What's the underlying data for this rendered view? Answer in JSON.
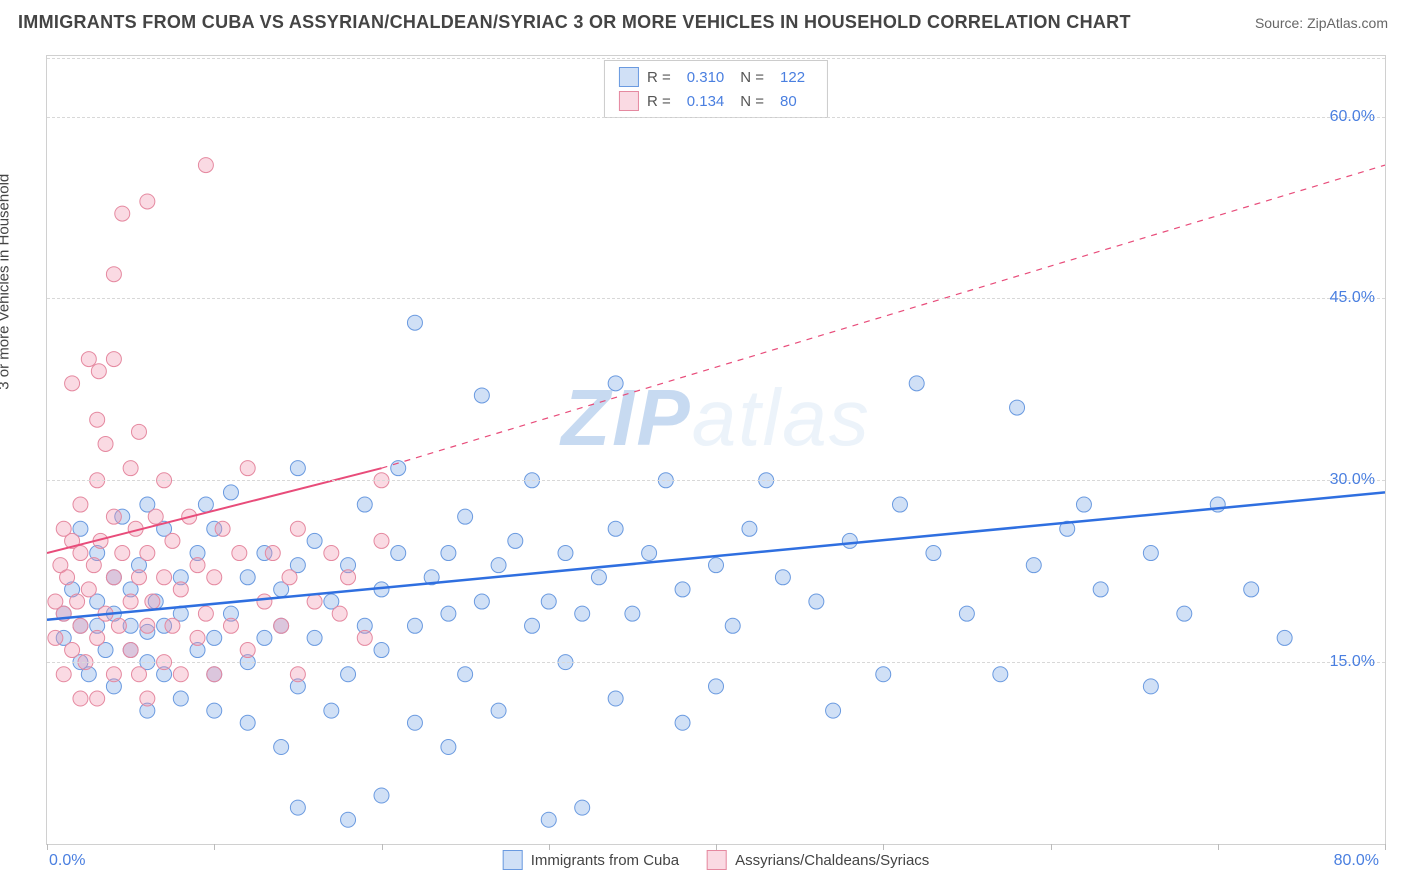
{
  "title": "IMMIGRANTS FROM CUBA VS ASSYRIAN/CHALDEAN/SYRIAC 3 OR MORE VEHICLES IN HOUSEHOLD CORRELATION CHART",
  "source": "Source: ZipAtlas.com",
  "y_axis_label": "3 or more Vehicles in Household",
  "watermark_zip": "ZIP",
  "watermark_atlas": "atlas",
  "chart": {
    "type": "scatter",
    "xlim": [
      0,
      80
    ],
    "ylim": [
      0,
      65
    ],
    "y_ticks": [
      15,
      30,
      45,
      60
    ],
    "y_tick_labels": [
      "15.0%",
      "30.0%",
      "45.0%",
      "60.0%"
    ],
    "x_tick_left": "0.0%",
    "x_tick_right": "80.0%",
    "x_tick_positions": [
      0,
      10,
      20,
      30,
      40,
      50,
      60,
      70,
      80
    ],
    "background_color": "#ffffff",
    "grid_color": "#d8d8d8",
    "border_color": "#d0d0d0",
    "marker_radius": 7.5,
    "series": [
      {
        "name": "Immigrants from Cuba",
        "fill": "rgba(120,165,230,0.35)",
        "stroke": "#6a9ae0",
        "trend_color": "#2f6fe0",
        "trend_width": 2.5,
        "trend_p1": [
          0,
          18.5
        ],
        "trend_p2": [
          80,
          29
        ],
        "R": "0.310",
        "N": "122",
        "points": [
          [
            1,
            17
          ],
          [
            1,
            19
          ],
          [
            1.5,
            21
          ],
          [
            2,
            15
          ],
          [
            2,
            18
          ],
          [
            2,
            26
          ],
          [
            2.5,
            14
          ],
          [
            3,
            18
          ],
          [
            3,
            20
          ],
          [
            3,
            24
          ],
          [
            3.5,
            16
          ],
          [
            4,
            13
          ],
          [
            4,
            19
          ],
          [
            4,
            22
          ],
          [
            4.5,
            27
          ],
          [
            5,
            16
          ],
          [
            5,
            18
          ],
          [
            5,
            21
          ],
          [
            5.5,
            23
          ],
          [
            6,
            11
          ],
          [
            6,
            15
          ],
          [
            6,
            17.5
          ],
          [
            6,
            28
          ],
          [
            6.5,
            20
          ],
          [
            7,
            14
          ],
          [
            7,
            18
          ],
          [
            7,
            26
          ],
          [
            8,
            12
          ],
          [
            8,
            19
          ],
          [
            8,
            22
          ],
          [
            9,
            16
          ],
          [
            9,
            24
          ],
          [
            9.5,
            28
          ],
          [
            10,
            11
          ],
          [
            10,
            14
          ],
          [
            10,
            17
          ],
          [
            10,
            26
          ],
          [
            11,
            19
          ],
          [
            11,
            29
          ],
          [
            12,
            10
          ],
          [
            12,
            15
          ],
          [
            12,
            22
          ],
          [
            13,
            17
          ],
          [
            13,
            24
          ],
          [
            14,
            8
          ],
          [
            14,
            18
          ],
          [
            14,
            21
          ],
          [
            15,
            3
          ],
          [
            15,
            13
          ],
          [
            15,
            23
          ],
          [
            15,
            31
          ],
          [
            16,
            17
          ],
          [
            16,
            25
          ],
          [
            17,
            11
          ],
          [
            17,
            20
          ],
          [
            18,
            2
          ],
          [
            18,
            14
          ],
          [
            18,
            23
          ],
          [
            19,
            18
          ],
          [
            19,
            28
          ],
          [
            20,
            4
          ],
          [
            20,
            16
          ],
          [
            20,
            21
          ],
          [
            21,
            24
          ],
          [
            21,
            31
          ],
          [
            22,
            10
          ],
          [
            22,
            18
          ],
          [
            22,
            43
          ],
          [
            23,
            22
          ],
          [
            24,
            8
          ],
          [
            24,
            19
          ],
          [
            24,
            24
          ],
          [
            25,
            14
          ],
          [
            25,
            27
          ],
          [
            26,
            20
          ],
          [
            26,
            37
          ],
          [
            27,
            11
          ],
          [
            27,
            23
          ],
          [
            28,
            25
          ],
          [
            29,
            18
          ],
          [
            29,
            30
          ],
          [
            30,
            2
          ],
          [
            30,
            20
          ],
          [
            31,
            15
          ],
          [
            31,
            24
          ],
          [
            32,
            3
          ],
          [
            32,
            19
          ],
          [
            33,
            22
          ],
          [
            34,
            12
          ],
          [
            34,
            26
          ],
          [
            34,
            38
          ],
          [
            35,
            19
          ],
          [
            36,
            24
          ],
          [
            37,
            30
          ],
          [
            38,
            10
          ],
          [
            38,
            21
          ],
          [
            40,
            13
          ],
          [
            40,
            23
          ],
          [
            41,
            18
          ],
          [
            42,
            26
          ],
          [
            43,
            30
          ],
          [
            44,
            22
          ],
          [
            46,
            20
          ],
          [
            47,
            11
          ],
          [
            48,
            25
          ],
          [
            50,
            14
          ],
          [
            51,
            28
          ],
          [
            52,
            38
          ],
          [
            53,
            24
          ],
          [
            55,
            19
          ],
          [
            57,
            14
          ],
          [
            58,
            36
          ],
          [
            59,
            23
          ],
          [
            61,
            26
          ],
          [
            62,
            28
          ],
          [
            63,
            21
          ],
          [
            66,
            13
          ],
          [
            66,
            24
          ],
          [
            68,
            19
          ],
          [
            70,
            28
          ],
          [
            72,
            21
          ],
          [
            74,
            17
          ]
        ]
      },
      {
        "name": "Assyrians/Chaldeans/Syriacs",
        "fill": "rgba(240,150,175,0.35)",
        "stroke": "#e589a0",
        "trend_color": "#e84c7a",
        "trend_width": 2,
        "trend_solid_p1": [
          0,
          24
        ],
        "trend_solid_p2": [
          20,
          31
        ],
        "trend_dash_p1": [
          20,
          31
        ],
        "trend_dash_p2": [
          80,
          56
        ],
        "R": "0.134",
        "N": "80",
        "points": [
          [
            0.5,
            17
          ],
          [
            0.5,
            20
          ],
          [
            0.8,
            23
          ],
          [
            1,
            14
          ],
          [
            1,
            19
          ],
          [
            1,
            26
          ],
          [
            1.2,
            22
          ],
          [
            1.5,
            16
          ],
          [
            1.5,
            25
          ],
          [
            1.5,
            38
          ],
          [
            1.8,
            20
          ],
          [
            2,
            12
          ],
          [
            2,
            18
          ],
          [
            2,
            24
          ],
          [
            2,
            28
          ],
          [
            2.3,
            15
          ],
          [
            2.5,
            21
          ],
          [
            2.5,
            40
          ],
          [
            2.8,
            23
          ],
          [
            3,
            12
          ],
          [
            3,
            17
          ],
          [
            3,
            30
          ],
          [
            3,
            35
          ],
          [
            3.1,
            39
          ],
          [
            3.2,
            25
          ],
          [
            3.5,
            19
          ],
          [
            3.5,
            33
          ],
          [
            4,
            14
          ],
          [
            4,
            22
          ],
          [
            4,
            27
          ],
          [
            4,
            40
          ],
          [
            4,
            47
          ],
          [
            4.3,
            18
          ],
          [
            4.5,
            24
          ],
          [
            4.5,
            52
          ],
          [
            5,
            16
          ],
          [
            5,
            20
          ],
          [
            5,
            31
          ],
          [
            5.3,
            26
          ],
          [
            5.5,
            14
          ],
          [
            5.5,
            22
          ],
          [
            5.5,
            34
          ],
          [
            6,
            12
          ],
          [
            6,
            18
          ],
          [
            6,
            24
          ],
          [
            6,
            53
          ],
          [
            6.3,
            20
          ],
          [
            6.5,
            27
          ],
          [
            7,
            15
          ],
          [
            7,
            22
          ],
          [
            7,
            30
          ],
          [
            7.5,
            18
          ],
          [
            7.5,
            25
          ],
          [
            8,
            14
          ],
          [
            8,
            21
          ],
          [
            8.5,
            27
          ],
          [
            9,
            17
          ],
          [
            9,
            23
          ],
          [
            9.5,
            19
          ],
          [
            9.5,
            56
          ],
          [
            10,
            14
          ],
          [
            10,
            22
          ],
          [
            10.5,
            26
          ],
          [
            11,
            18
          ],
          [
            11.5,
            24
          ],
          [
            12,
            16
          ],
          [
            12,
            31
          ],
          [
            13,
            20
          ],
          [
            13.5,
            24
          ],
          [
            14,
            18
          ],
          [
            14.5,
            22
          ],
          [
            15,
            14
          ],
          [
            15,
            26
          ],
          [
            16,
            20
          ],
          [
            17,
            24
          ],
          [
            17.5,
            19
          ],
          [
            18,
            22
          ],
          [
            19,
            17
          ],
          [
            20,
            25
          ],
          [
            20,
            30
          ]
        ]
      }
    ]
  },
  "legend_top": {
    "r_label": "R =",
    "n_label": "N ="
  },
  "legend_bottom_series1": "Immigrants from Cuba",
  "legend_bottom_series2": "Assyrians/Chaldeans/Syriacs"
}
